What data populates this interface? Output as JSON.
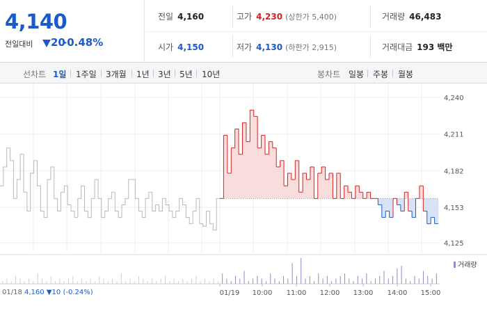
{
  "quote": {
    "price": "4,140",
    "change_label": "전일대비",
    "change_value": "20",
    "change_pct": "-0.48%"
  },
  "stats": {
    "prev_close": {
      "label": "전일",
      "value": "4,160"
    },
    "high": {
      "label": "고가",
      "value": "4,230",
      "sub": "(상한가 5,400)"
    },
    "volume": {
      "label": "거래량",
      "value": "46,483"
    },
    "open": {
      "label": "시가",
      "value": "4,150"
    },
    "low": {
      "label": "저가",
      "value": "4,130",
      "sub": "(하한가 2,915)"
    },
    "amount": {
      "label": "거래대금",
      "value": "193 백만"
    }
  },
  "tabs": {
    "line_chart_label": "선차트",
    "line_periods": [
      "1일",
      "1주일",
      "3개월",
      "1년",
      "3년",
      "5년",
      "10년"
    ],
    "active_period": "1일",
    "candle_chart_label": "봉차트",
    "candle_periods": [
      "일봉",
      "주봉",
      "월봉"
    ]
  },
  "footer": {
    "date": "01/18",
    "price": "4,160",
    "change": "▼10",
    "change_pct": "(-0.24%)"
  },
  "volume_legend": "거래량",
  "colors": {
    "up": "#d92020",
    "down": "#1a5ac9",
    "prev_day_line": "#b9b9b9",
    "volume_bar": "#8a8fc8"
  },
  "chart_data": {
    "type": "line",
    "title": "",
    "xlabel": "",
    "ylabel": "",
    "ylim": [
      4120,
      4245
    ],
    "y_ticks": [
      "4,240",
      "4,211",
      "4,182",
      "4,153",
      "4,125"
    ],
    "y_tick_values": [
      4240,
      4211,
      4182,
      4153,
      4125
    ],
    "baseline": 4160,
    "x_tick_labels": [
      "01/18",
      "01/19",
      "10:00",
      "11:00",
      "12:00",
      "13:00",
      "14:00",
      "15:00"
    ],
    "series": [
      {
        "values": [
          4170,
          4185,
          4200,
          4190,
          4160,
          4175,
          4195,
          4165,
          4150,
          4180,
          4190,
          4170,
          4150,
          4145,
          4175,
          4185,
          4160,
          4150,
          4165,
          4170,
          4155,
          4150,
          4145,
          4160,
          4170,
          4150,
          4145,
          4160,
          4175,
          4160,
          4145,
          4150,
          4160,
          4165,
          4150,
          4145,
          4155,
          4160,
          4175,
          4175,
          4160,
          4150,
          4145,
          4160,
          4165,
          4150,
          4155,
          4150,
          4160,
          4155,
          4150,
          4145,
          4150,
          4160,
          4155,
          4145,
          4140,
          4150,
          4160,
          4140,
          4138,
          4150,
          4140,
          4135,
          4160
        ]
      },
      {
        "values": [
          4160,
          4210,
          4180,
          4200,
          4215,
          4195,
          4220,
          4205,
          4230,
          4225,
          4200,
          4210,
          4195,
          4205,
          4200,
          4185,
          4190,
          4170,
          4180,
          4175,
          4190,
          4165,
          4180,
          4175,
          4185,
          4160,
          4180,
          4185,
          4175,
          4180,
          4160,
          4180,
          4160,
          4170,
          4165,
          4160,
          4170,
          4165,
          4160,
          4165,
          4160,
          4160,
          4155,
          4145,
          4150,
          4145,
          4160,
          4155,
          4150,
          4165,
          4150,
          4145,
          4160,
          4170,
          4150,
          4140,
          4145,
          4140
        ]
      }
    ],
    "volume": {
      "prev_day": [
        1,
        2,
        1,
        3,
        2,
        1,
        2,
        1,
        4,
        2,
        1,
        3,
        1,
        2,
        1,
        2,
        3,
        1,
        2,
        1,
        2,
        1,
        3,
        2,
        1,
        2,
        1,
        4,
        1,
        2,
        1,
        3,
        2,
        1,
        2,
        1,
        2,
        3,
        1,
        2,
        1,
        2,
        1,
        2,
        3,
        1,
        2,
        1,
        2,
        1
      ],
      "today": [
        4,
        2,
        1,
        3,
        2,
        5,
        1,
        2,
        3,
        2,
        1,
        4,
        2,
        1,
        3,
        2,
        8,
        3,
        10,
        2,
        3,
        1,
        4,
        2,
        3,
        1,
        2,
        3,
        4,
        2,
        1,
        3,
        2,
        4,
        1,
        2,
        3,
        5,
        2,
        3,
        6,
        7,
        2,
        1,
        3,
        2,
        5,
        3,
        2,
        4
      ]
    }
  }
}
